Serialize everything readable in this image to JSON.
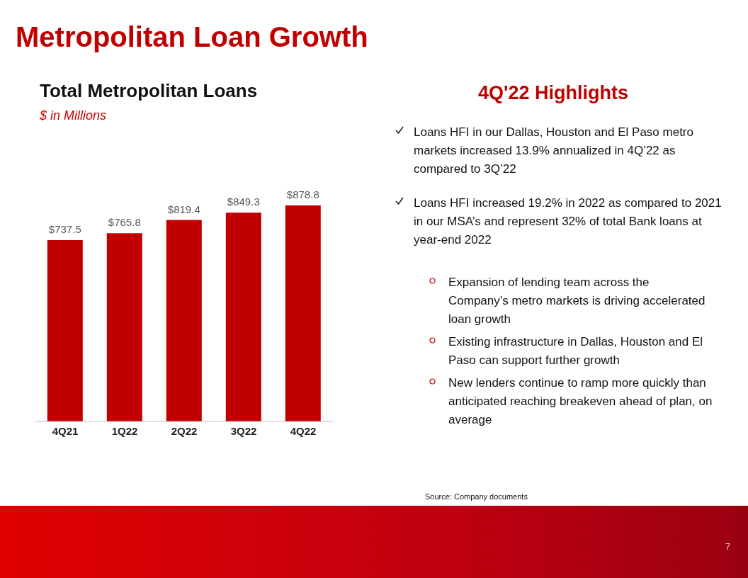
{
  "chart_data": {
    "type": "bar",
    "title": "Total Metropolitan Loans",
    "subtitle": "$ in Millions",
    "categories": [
      "4Q21",
      "1Q22",
      "2Q22",
      "3Q22",
      "4Q22"
    ],
    "values": [
      737.5,
      765.8,
      819.4,
      849.3,
      878.8
    ],
    "value_labels": [
      "$737.5",
      "$765.8",
      "$819.4",
      "$849.3",
      "$878.8"
    ],
    "color": "#c00000",
    "tick_labels": "x",
    "grid": false,
    "legend": false,
    "annotations": [
      "Metropolitan Loan Growth",
      "4Q'22 Highlights",
      "Loans HFI in our Dallas, Houston and El Paso metro markets increased 13.9% annualized in 4Q’22 as compared to 3Q’22",
      "Loans HFI increased 19.2% in 2022 as compared to 2021 in our MSA’s and represent 32% of total Bank loans at year-end 2022",
      "Expansion of lending team across the Company’s metro markets is driving accelerated loan growth",
      "Existing infrastructure in Dallas, Houston and El Paso can support further growth",
      "New lenders continue to ramp more quickly than anticipated reaching breakeven ahead of plan, on average",
      "Source: Company documents",
      "7"
    ]
  }
}
